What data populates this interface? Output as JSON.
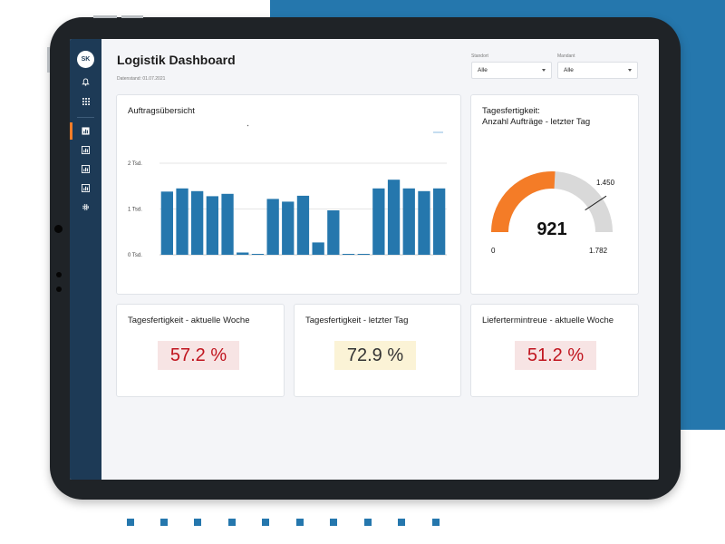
{
  "dashboard": {
    "title": "Logistik Dashboard",
    "date_label": "Datenstand: 01.07.2021"
  },
  "user": {
    "initials": "SK"
  },
  "sidebar": {
    "top_icons": [
      "bell-icon",
      "grid-icon"
    ],
    "nav_icons": [
      "chart-icon",
      "chart-icon",
      "chart-icon",
      "chart-icon",
      "gear-icon"
    ],
    "active_item": 1
  },
  "filters": {
    "standort": {
      "label": "Standort",
      "value": "Alle"
    },
    "mandant": {
      "label": "Mandant",
      "value": "Alle"
    }
  },
  "order_chart": {
    "title": "Auftragsübersicht"
  },
  "gauge": {
    "title_line1": "Tagesfertigkeit:",
    "title_line2": "Anzahl Aufträge - letzter Tag",
    "value": 921,
    "value_label": "921",
    "min_label": "0",
    "max_label": "1.782",
    "marker_label": "1.450",
    "min": 0,
    "max": 1782,
    "marker": 1450
  },
  "kpis": [
    {
      "title": "Tagesfertigkeit - aktuelle Woche",
      "value": "57.2 %",
      "text_color": "#c0141e",
      "bg_color": "#f7e4e4"
    },
    {
      "title": "Tagesfertigkeit - letzter Tag",
      "value": "72.9 %",
      "text_color": "#333333",
      "bg_color": "#fbf3d6"
    },
    {
      "title": "Liefertermintreue - aktuelle Woche",
      "value": "51.2 %",
      "text_color": "#c0141e",
      "bg_color": "#f7e4e4"
    }
  ],
  "colors": {
    "sidebar": "#1d3a56",
    "accent": "#f47c27",
    "bar": "#2577ad",
    "background_block": "#2577ad",
    "gauge_track": "#d9d9d9"
  },
  "chart_data": {
    "type": "bar",
    "title": "Auftragsübersicht",
    "xlabel": "",
    "ylabel": "",
    "ylim": [
      0,
      2000
    ],
    "y_ticks": [
      0,
      1000,
      2000
    ],
    "y_tick_labels": [
      "0 Tsd.",
      "1 Tsd.",
      "2 Tsd."
    ],
    "grid": true,
    "values": [
      1380,
      1450,
      1390,
      1280,
      1330,
      50,
      10,
      1220,
      1160,
      1290,
      270,
      970,
      10,
      10,
      1450,
      1640,
      1450,
      1390,
      1450
    ]
  }
}
